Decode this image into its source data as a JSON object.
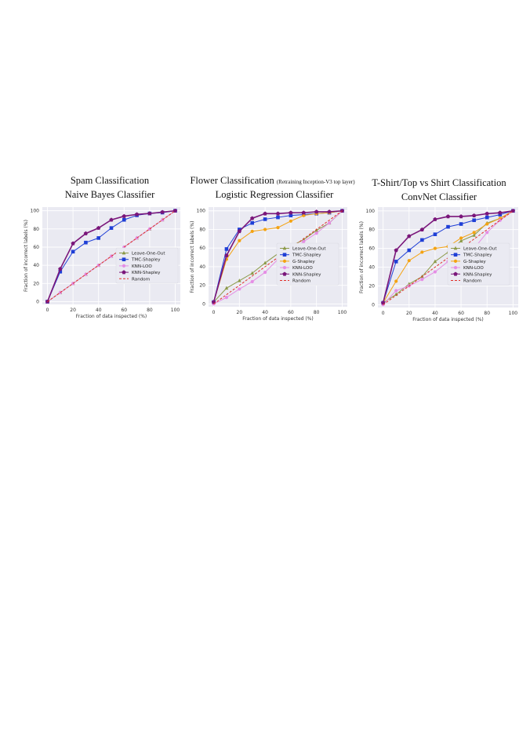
{
  "chart_data": [
    {
      "type": "line",
      "title": "Spam Classification",
      "title_note": "",
      "subtitle": "Naive Bayes Classifier",
      "xlabel": "Fraction of data inspected (%)",
      "ylabel": "Fraction of incorrect labels (%)",
      "xlim": [
        -4,
        104
      ],
      "ylim": [
        -3,
        104
      ],
      "xticks": [
        0,
        20,
        40,
        60,
        80,
        100
      ],
      "yticks": [
        0,
        20,
        40,
        60,
        80,
        100
      ],
      "grid": true,
      "legend_position": "lower-right",
      "series": [
        {
          "name": "Leave-One-Out",
          "marker": "triangle",
          "color": "#8c9a48",
          "x": [
            0,
            10,
            20,
            30,
            40,
            50,
            60,
            70,
            80,
            90,
            100
          ],
          "y": [
            0,
            10,
            20,
            30,
            40,
            50,
            60,
            70,
            80,
            90,
            100
          ]
        },
        {
          "name": "TMC-Shapley",
          "marker": "square",
          "color": "#1f3fd6",
          "x": [
            0,
            10,
            20,
            30,
            40,
            50,
            60,
            70,
            80,
            90,
            100
          ],
          "y": [
            0,
            33,
            55,
            65,
            70,
            81,
            90,
            95,
            97,
            98,
            100
          ]
        },
        {
          "name": "KNN-LOO",
          "marker": "circle",
          "color": "#e58ee5",
          "x": [
            0,
            10,
            20,
            30,
            40,
            50,
            60,
            70,
            80,
            90,
            100
          ],
          "y": [
            0,
            10,
            20,
            30,
            40,
            50,
            60,
            70,
            80,
            90,
            100
          ]
        },
        {
          "name": "KNN-Shapley",
          "marker": "pentagon",
          "color": "#7a167a",
          "x": [
            0,
            10,
            20,
            30,
            40,
            50,
            60,
            70,
            80,
            90,
            100
          ],
          "y": [
            0,
            36,
            64,
            75,
            81,
            90,
            94,
            96,
            97,
            98.5,
            100
          ]
        },
        {
          "name": "Random",
          "marker": "none",
          "dashed": true,
          "color": "#e0302a",
          "x": [
            0,
            100
          ],
          "y": [
            0,
            100
          ]
        }
      ]
    },
    {
      "type": "line",
      "title": "Flower Classification",
      "title_note": "(Retraining Inception-V3 top layer)",
      "subtitle": "Logistic Regression Classifier",
      "xlabel": "Fraction of data inspected (%)",
      "ylabel": "Fraction of incorrect labels (%)",
      "xlim": [
        -4,
        104
      ],
      "ylim": [
        -3,
        104
      ],
      "xticks": [
        0,
        20,
        40,
        60,
        80,
        100
      ],
      "yticks": [
        0,
        20,
        40,
        60,
        80,
        100
      ],
      "grid": true,
      "legend_position": "lower-right",
      "series": [
        {
          "name": "Leave-One-Out",
          "marker": "triangle",
          "color": "#8c9a48",
          "x": [
            0,
            10,
            20,
            30,
            40,
            50,
            60,
            70,
            80,
            90,
            100
          ],
          "y": [
            2,
            17,
            25,
            33,
            44,
            54,
            62,
            69,
            79,
            87,
            100
          ]
        },
        {
          "name": "TMC-Shapley",
          "marker": "square",
          "color": "#1f3fd6",
          "x": [
            0,
            10,
            20,
            30,
            40,
            50,
            60,
            70,
            80,
            90,
            100
          ],
          "y": [
            2,
            59,
            80,
            87,
            91,
            93,
            95,
            96,
            97,
            98,
            100
          ]
        },
        {
          "name": "G-Shapley",
          "marker": "circle",
          "color": "#f4a312",
          "x": [
            0,
            10,
            20,
            30,
            40,
            50,
            60,
            70,
            80,
            90,
            100
          ],
          "y": [
            2,
            48,
            68,
            78,
            80,
            82,
            89,
            95,
            97,
            98,
            100
          ]
        },
        {
          "name": "KNN-LOO",
          "marker": "circle",
          "color": "#e58ee5",
          "x": [
            0,
            10,
            20,
            30,
            40,
            50,
            60,
            70,
            80,
            90,
            100
          ],
          "y": [
            0,
            7,
            16,
            24,
            34,
            48,
            57,
            67,
            76,
            87,
            100
          ]
        },
        {
          "name": "KNN-Shapley",
          "marker": "pentagon",
          "color": "#7a167a",
          "x": [
            0,
            10,
            20,
            30,
            40,
            50,
            60,
            70,
            80,
            90,
            100
          ],
          "y": [
            2,
            52,
            78,
            92,
            97,
            97,
            98,
            98,
            99,
            99,
            100
          ]
        },
        {
          "name": "Random",
          "marker": "none",
          "dashed": true,
          "color": "#e0302a",
          "x": [
            0,
            100
          ],
          "y": [
            0,
            100
          ]
        }
      ]
    },
    {
      "type": "line",
      "title": "T-Shirt/Top vs Shirt Classification",
      "title_note": "",
      "subtitle": "ConvNet Classifier",
      "xlabel": "Fraction of data inspected (%)",
      "ylabel": "Fraction of incorrect labels (%)",
      "xlim": [
        -4,
        104
      ],
      "ylim": [
        -3,
        104
      ],
      "xticks": [
        0,
        20,
        40,
        60,
        80,
        100
      ],
      "yticks": [
        0,
        20,
        40,
        60,
        80,
        100
      ],
      "grid": true,
      "legend_position": "lower-right",
      "series": [
        {
          "name": "Leave-One-Out",
          "marker": "triangle",
          "color": "#8c9a48",
          "x": [
            0,
            10,
            20,
            30,
            40,
            50,
            60,
            70,
            80,
            90,
            100
          ],
          "y": [
            2,
            11,
            22,
            30,
            46,
            56,
            68,
            74,
            87,
            92,
            100
          ]
        },
        {
          "name": "TMC-Shapley",
          "marker": "square",
          "color": "#1f3fd6",
          "x": [
            0,
            10,
            20,
            30,
            40,
            50,
            60,
            70,
            80,
            90,
            100
          ],
          "y": [
            2,
            46,
            58,
            69,
            75,
            83,
            86,
            90,
            93,
            96,
            100
          ]
        },
        {
          "name": "G-Shapley",
          "marker": "circle",
          "color": "#f4a312",
          "x": [
            0,
            10,
            20,
            30,
            40,
            50,
            60,
            70,
            80,
            90,
            100
          ],
          "y": [
            2,
            25,
            47,
            56,
            60,
            62,
            71,
            77,
            86,
            92,
            100
          ]
        },
        {
          "name": "KNN-LOO",
          "marker": "circle",
          "color": "#e58ee5",
          "x": [
            0,
            10,
            20,
            30,
            40,
            50,
            60,
            70,
            80,
            90,
            100
          ],
          "y": [
            0,
            15,
            20,
            27,
            35,
            46,
            50,
            60,
            77,
            90,
            100
          ]
        },
        {
          "name": "KNN-Shapley",
          "marker": "pentagon",
          "color": "#7a167a",
          "x": [
            0,
            10,
            20,
            30,
            40,
            50,
            60,
            70,
            80,
            90,
            100
          ],
          "y": [
            2,
            58,
            73,
            80,
            91,
            94,
            94,
            95,
            97,
            98,
            100
          ]
        },
        {
          "name": "Random",
          "marker": "none",
          "dashed": true,
          "color": "#e0302a",
          "x": [
            0,
            100
          ],
          "y": [
            0,
            100
          ]
        }
      ]
    }
  ]
}
